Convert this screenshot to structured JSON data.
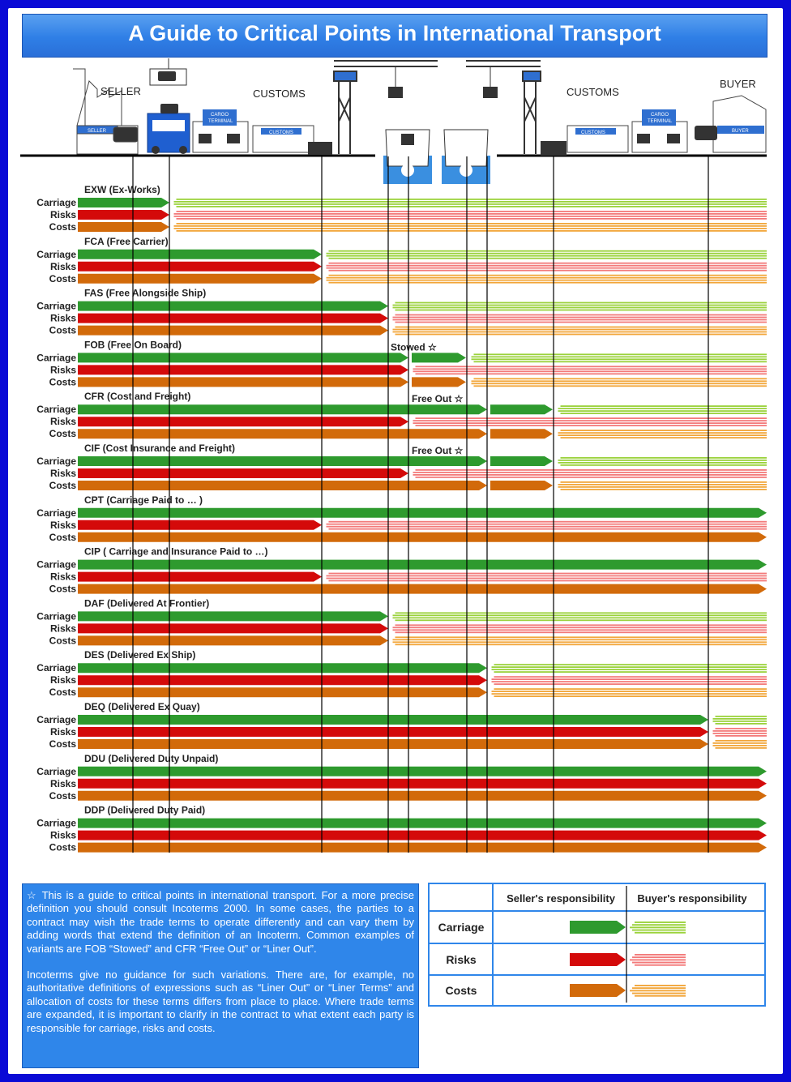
{
  "title": "A Guide to Critical Points in International Transport",
  "scene": {
    "seller": "SELLER",
    "customs_left": "CUSTOMS",
    "customs_right": "CUSTOMS",
    "buyer": "BUYER",
    "sign_seller": "SELLER",
    "sign_customs": "CUSTOMS",
    "sign_buyer": "BUYER",
    "cargo_terminal_1": "CARGO",
    "cargo_terminal_2": "TERMINAL"
  },
  "row_labels": [
    "Carriage",
    "Risks",
    "Costs"
  ],
  "terms": [
    {
      "name": "EXW (Ex-Works)",
      "ends": [
        2,
        2,
        2
      ],
      "note": ""
    },
    {
      "name": "FCA (Free Carrier)",
      "ends": [
        3,
        3,
        3
      ],
      "note": ""
    },
    {
      "name": "FAS (Free Alongside Ship)",
      "ends": [
        4,
        4,
        4
      ],
      "note": ""
    },
    {
      "name": "FOB (Free On Board)",
      "ends": [
        5,
        5,
        5
      ],
      "seller_ext": [
        6,
        null,
        6
      ],
      "note": "Stowed"
    },
    {
      "name": "CFR (Cost and Freight)",
      "ends": [
        7,
        5,
        7
      ],
      "seller_ext": [
        8,
        null,
        8
      ],
      "note": "Free Out"
    },
    {
      "name": "CIF (Cost Insurance and Freight)",
      "ends": [
        7,
        5,
        7
      ],
      "seller_ext": [
        8,
        null,
        8
      ],
      "note": "Free Out"
    },
    {
      "name": "CPT (Carriage Paid to … )",
      "ends": [
        10,
        3,
        10
      ],
      "note": ""
    },
    {
      "name": "CIP ( Carriage and Insurance Paid to …)",
      "ends": [
        10,
        3,
        10
      ],
      "note": ""
    },
    {
      "name": "DAF (Delivered At Frontier)",
      "ends": [
        4,
        4,
        4
      ],
      "note": ""
    },
    {
      "name": "DES (Delivered Ex Ship)",
      "ends": [
        7,
        7,
        7
      ],
      "note": ""
    },
    {
      "name": "DEQ (Delivered Ex Quay)",
      "ends": [
        9,
        9,
        9
      ],
      "note": ""
    },
    {
      "name": "DDU (Delivered Duty Unpaid)",
      "ends": [
        10,
        10,
        10
      ],
      "note": ""
    },
    {
      "name": "DDP (Delivered Duty Paid)",
      "ends": [
        10,
        10,
        10
      ],
      "note": ""
    }
  ],
  "colors": {
    "carriage": "#2e9a2e",
    "risks": "#d40a0a",
    "costs": "#d26a0a",
    "carriage_buyer": "#9bd23c",
    "risks_buyer": "#f37a7a",
    "costs_buyer": "#f2a63a",
    "accent": "#2f86ea",
    "frame": "#0a0ad6"
  },
  "note_paragraphs": [
    "This is a guide to critical points in international transport. For a more precise definition you should consult Incoterms 2000. In some cases, the parties to a contract may wish the trade terms to operate differently and can vary them by adding words that extend the definition of an Incoterm. Common examples of variants are FOB “Stowed” and CFR “Free Out” or “Liner Out”.",
    "Incoterms give no guidance for such variations. There are, for example, no authoritative definitions of expressions such as “Liner Out” or “Liner Terms” and allocation of costs for these terms differs from place to place. Where trade terms are expanded, it is important to clarify in the contract to what extent each party is responsible for carriage, risks and costs."
  ],
  "note_star": "☆",
  "legend": {
    "seller_header": "Seller's responsibility",
    "buyer_header": "Buyer's responsibility",
    "rows": [
      "Carriage",
      "Risks",
      "Costs"
    ]
  }
}
